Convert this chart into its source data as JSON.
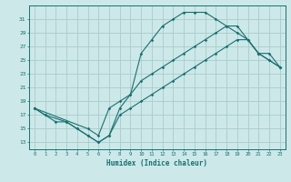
{
  "xlabel": "Humidex (Indice chaleur)",
  "background_color": "#cce8e8",
  "grid_color": "#aacccc",
  "line_color": "#1a7070",
  "xlim": [
    -0.5,
    23.5
  ],
  "ylim": [
    12,
    33
  ],
  "xticks": [
    0,
    1,
    2,
    3,
    4,
    5,
    6,
    7,
    8,
    9,
    10,
    11,
    12,
    13,
    14,
    15,
    16,
    17,
    18,
    19,
    20,
    21,
    22,
    23
  ],
  "yticks": [
    13,
    15,
    17,
    19,
    21,
    23,
    25,
    27,
    29,
    31
  ],
  "curve1_x": [
    0,
    1,
    3,
    4,
    5,
    6,
    7,
    8,
    9,
    10,
    11,
    12,
    13,
    14,
    15,
    16,
    17,
    18,
    19,
    20,
    21,
    22,
    23
  ],
  "curve1_y": [
    18,
    17,
    16,
    15,
    14,
    13,
    14,
    18,
    20,
    26,
    28,
    30,
    31,
    32,
    32,
    32,
    31,
    30,
    29,
    28,
    26,
    26,
    24
  ],
  "curve2_x": [
    0,
    5,
    6,
    7,
    8,
    9,
    10,
    11,
    12,
    13,
    14,
    15,
    16,
    17,
    18,
    19,
    20,
    21,
    22,
    23
  ],
  "curve2_y": [
    18,
    15,
    14,
    18,
    19,
    20,
    22,
    23,
    24,
    25,
    26,
    27,
    28,
    29,
    30,
    30,
    28,
    26,
    25,
    24
  ],
  "curve3_x": [
    0,
    1,
    2,
    3,
    4,
    5,
    6,
    7,
    8,
    9,
    10,
    11,
    12,
    13,
    14,
    15,
    16,
    17,
    18,
    19,
    20,
    21,
    22,
    23
  ],
  "curve3_y": [
    18,
    17,
    16,
    16,
    15,
    14,
    13,
    14,
    17,
    18,
    19,
    20,
    21,
    22,
    23,
    24,
    25,
    26,
    27,
    28,
    28,
    26,
    25,
    24
  ]
}
